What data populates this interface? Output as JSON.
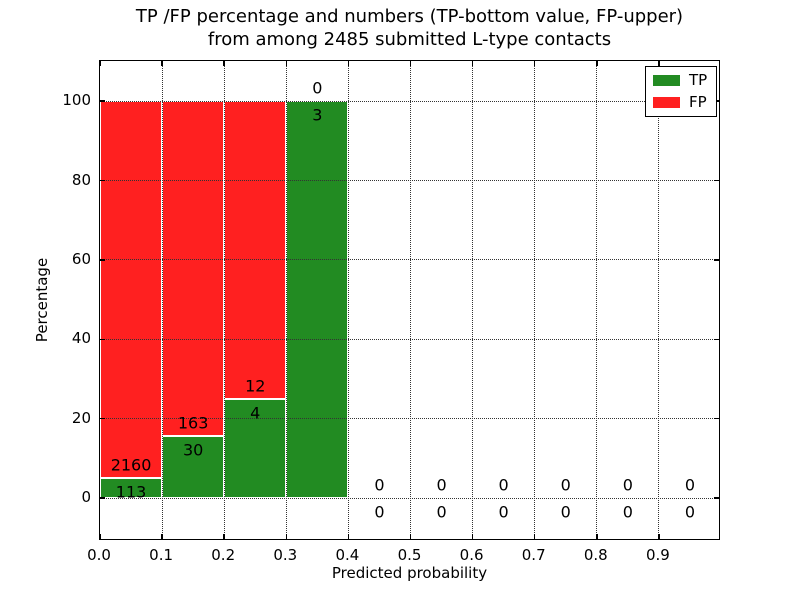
{
  "chart_data": {
    "type": "bar",
    "stacked": true,
    "title_line1": "TP /FP percentage and numbers (TP-bottom value, FP-upper)",
    "title_line2": "from among 2485 submitted L-type contacts",
    "xlabel": "Predicted probability",
    "ylabel": "Percentage",
    "bin_width": 0.1,
    "bin_starts": [
      0.0,
      0.1,
      0.2,
      0.3,
      0.4,
      0.5,
      0.6,
      0.7,
      0.8,
      0.9
    ],
    "categories": [
      "0.0-0.1",
      "0.1-0.2",
      "0.2-0.3",
      "0.3-0.4",
      "0.4-0.5",
      "0.5-0.6",
      "0.6-0.7",
      "0.7-0.8",
      "0.8-0.9",
      "0.9-1.0"
    ],
    "series": [
      {
        "name": "TP",
        "color": "#228b22",
        "counts": [
          113,
          30,
          4,
          3,
          0,
          0,
          0,
          0,
          0,
          0
        ]
      },
      {
        "name": "FP",
        "color": "#ff2020",
        "counts": [
          2160,
          163,
          12,
          0,
          0,
          0,
          0,
          0,
          0,
          0
        ]
      }
    ],
    "tp_percent_by_bin": [
      4.97,
      15.54,
      25.0,
      100.0,
      null,
      null,
      null,
      null,
      null,
      null
    ],
    "xticks": [
      "0.0",
      "0.1",
      "0.2",
      "0.3",
      "0.4",
      "0.5",
      "0.6",
      "0.7",
      "0.8",
      "0.9"
    ],
    "yticks": [
      "0",
      "20",
      "40",
      "60",
      "80",
      "100"
    ],
    "xlim": [
      0,
      1.0
    ],
    "ylim": [
      -10.8,
      110.1
    ],
    "grid": "dotted",
    "legend": {
      "position": "upper-right",
      "entries": [
        {
          "label": "TP",
          "color": "#228b22"
        },
        {
          "label": "FP",
          "color": "#ff2020"
        }
      ]
    }
  }
}
